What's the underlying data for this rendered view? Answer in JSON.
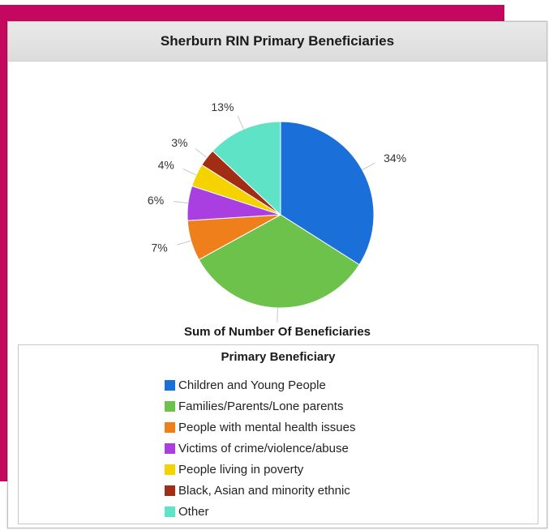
{
  "chart_data": {
    "type": "pie",
    "title": "Sherburn RIN Primary Beneficiaries",
    "measure_label": "Sum of Number Of Beneficiaries",
    "legend_title": "Primary Beneficiary",
    "legend_position": "bottom",
    "slices": [
      {
        "label": "Children and Young People",
        "value": 34,
        "display": "34%",
        "color": "#1a6fd9"
      },
      {
        "label": "Families/Parents/Lone parents",
        "value": 33,
        "display": "33%",
        "color": "#6cc24a"
      },
      {
        "label": "People with mental health issues",
        "value": 7,
        "display": "7%",
        "color": "#ee7f1a"
      },
      {
        "label": "Victims of crime/violence/abuse",
        "value": 6,
        "display": "6%",
        "color": "#a93fe0"
      },
      {
        "label": "People living in poverty",
        "value": 4,
        "display": "4%",
        "color": "#f5d300"
      },
      {
        "label": "Black, Asian and minority ethnic",
        "value": 3,
        "display": "3%",
        "color": "#a12e14"
      },
      {
        "label": "Other",
        "value": 13,
        "display": "13%",
        "color": "#5fe3c6"
      }
    ]
  }
}
